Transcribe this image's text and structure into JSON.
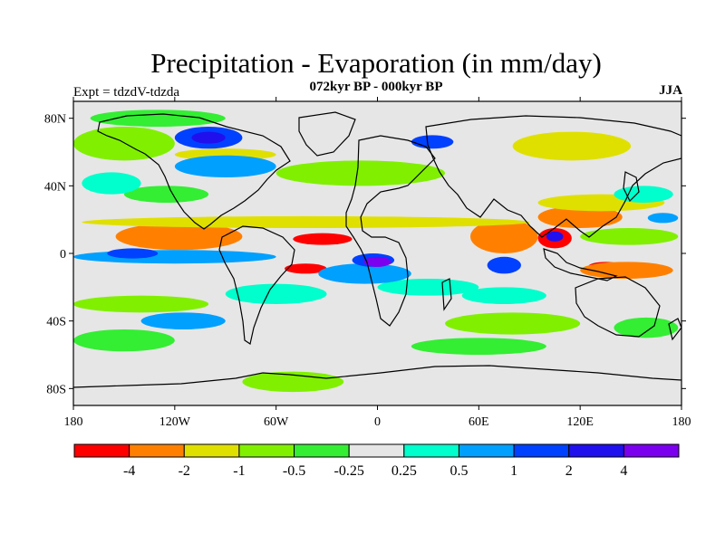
{
  "title": "Precipitation - Evaporation (in mm/day)",
  "subtitle": "072kyr BP - 000kyr BP",
  "left_label": "Expt = tdzdV-tdzda",
  "right_label": "JJA",
  "map": {
    "projection": "cylindrical equidistant",
    "lon_range": [
      -180,
      180
    ],
    "lat_range": [
      -90,
      90
    ],
    "background_color": "#e6e6e6",
    "coastline_color": "#000000",
    "x_tick_labels": [
      "180",
      "120W",
      "60W",
      "0",
      "60E",
      "120E",
      "180"
    ],
    "x_tick_values": [
      -180,
      -120,
      -60,
      0,
      60,
      120,
      180
    ],
    "y_tick_labels": [
      "80N",
      "40N",
      "0",
      "40S",
      "80S"
    ],
    "y_tick_values": [
      80,
      40,
      0,
      -40,
      -80
    ]
  },
  "colorbar": {
    "colors": [
      "#ff0000",
      "#ff8000",
      "#e0e000",
      "#80f000",
      "#33ee33",
      "#e6e6e6",
      "#00ffcc",
      "#00a0ff",
      "#0040ff",
      "#2010ee",
      "#7a00ee"
    ],
    "labels": [
      "-4",
      "-2",
      "-1",
      "-0.5",
      "-0.25",
      "0.25",
      "0.5",
      "1",
      "2",
      "4"
    ],
    "levels": [
      -4,
      -2,
      -1,
      -0.5,
      -0.25,
      0.25,
      0.5,
      1,
      2,
      4
    ]
  },
  "field_regions": [
    {
      "level": 0,
      "lon": [
        -140,
        -90
      ],
      "lat": [
        5,
        14
      ]
    },
    {
      "level": 0,
      "lon": [
        -50,
        -15
      ],
      "lat": [
        5,
        12
      ]
    },
    {
      "level": 0,
      "lon": [
        -55,
        -30
      ],
      "lat": [
        -12,
        -6
      ]
    },
    {
      "level": 0,
      "lon": [
        75,
        90
      ],
      "lat": [
        4,
        14
      ]
    },
    {
      "level": 0,
      "lon": [
        95,
        115
      ],
      "lat": [
        3,
        15
      ]
    },
    {
      "level": 0,
      "lon": [
        125,
        145
      ],
      "lat": [
        -10,
        -5
      ]
    },
    {
      "level": 1,
      "lon": [
        -155,
        -80
      ],
      "lat": [
        2,
        18
      ]
    },
    {
      "level": 1,
      "lon": [
        55,
        95
      ],
      "lat": [
        0,
        20
      ]
    },
    {
      "level": 1,
      "lon": [
        95,
        145
      ],
      "lat": [
        15,
        28
      ]
    },
    {
      "level": 1,
      "lon": [
        120,
        175
      ],
      "lat": [
        -15,
        -5
      ]
    },
    {
      "level": 2,
      "lon": [
        -175,
        90
      ],
      "lat": [
        15,
        22
      ]
    },
    {
      "level": 2,
      "lon": [
        95,
        170
      ],
      "lat": [
        25,
        35
      ]
    },
    {
      "level": 2,
      "lon": [
        -120,
        -60
      ],
      "lat": [
        55,
        62
      ]
    },
    {
      "level": 2,
      "lon": [
        80,
        150
      ],
      "lat": [
        55,
        72
      ]
    },
    {
      "level": 3,
      "lon": [
        -180,
        -120
      ],
      "lat": [
        55,
        75
      ]
    },
    {
      "level": 3,
      "lon": [
        -60,
        40
      ],
      "lat": [
        40,
        55
      ]
    },
    {
      "level": 3,
      "lon": [
        -180,
        -100
      ],
      "lat": [
        -35,
        -25
      ]
    },
    {
      "level": 3,
      "lon": [
        40,
        120
      ],
      "lat": [
        -48,
        -35
      ]
    },
    {
      "level": 3,
      "lon": [
        120,
        178
      ],
      "lat": [
        5,
        15
      ]
    },
    {
      "level": 3,
      "lon": [
        -80,
        -20
      ],
      "lat": [
        -82,
        -70
      ]
    },
    {
      "level": 4,
      "lon": [
        -180,
        -120
      ],
      "lat": [
        -58,
        -45
      ]
    },
    {
      "level": 4,
      "lon": [
        20,
        100
      ],
      "lat": [
        -60,
        -50
      ]
    },
    {
      "level": 4,
      "lon": [
        140,
        178
      ],
      "lat": [
        -50,
        -38
      ]
    },
    {
      "level": 4,
      "lon": [
        -150,
        -100
      ],
      "lat": [
        30,
        40
      ]
    },
    {
      "level": 4,
      "lon": [
        -170,
        -90
      ],
      "lat": [
        75,
        85
      ]
    },
    {
      "level": 6,
      "lon": [
        -175,
        -140
      ],
      "lat": [
        35,
        48
      ]
    },
    {
      "level": 6,
      "lon": [
        -90,
        -30
      ],
      "lat": [
        -30,
        -18
      ]
    },
    {
      "level": 6,
      "lon": [
        0,
        60
      ],
      "lat": [
        -25,
        -15
      ]
    },
    {
      "level": 6,
      "lon": [
        140,
        175
      ],
      "lat": [
        30,
        40
      ]
    },
    {
      "level": 6,
      "lon": [
        50,
        100
      ],
      "lat": [
        -30,
        -20
      ]
    },
    {
      "level": 7,
      "lon": [
        -180,
        -60
      ],
      "lat": [
        -6,
        2
      ]
    },
    {
      "level": 7,
      "lon": [
        -35,
        20
      ],
      "lat": [
        -18,
        -6
      ]
    },
    {
      "level": 7,
      "lon": [
        -120,
        -60
      ],
      "lat": [
        45,
        58
      ]
    },
    {
      "level": 7,
      "lon": [
        160,
        178
      ],
      "lat": [
        18,
        24
      ]
    },
    {
      "level": 7,
      "lon": [
        -140,
        -90
      ],
      "lat": [
        -45,
        -35
      ]
    },
    {
      "level": 8,
      "lon": [
        -160,
        -130
      ],
      "lat": [
        -3,
        3
      ]
    },
    {
      "level": 8,
      "lon": [
        -120,
        -80
      ],
      "lat": [
        62,
        75
      ]
    },
    {
      "level": 8,
      "lon": [
        20,
        45
      ],
      "lat": [
        62,
        70
      ]
    },
    {
      "level": 8,
      "lon": [
        -15,
        10
      ],
      "lat": [
        -8,
        0
      ]
    },
    {
      "level": 8,
      "lon": [
        65,
        85
      ],
      "lat": [
        -12,
        -2
      ]
    },
    {
      "level": 9,
      "lon": [
        -110,
        -90
      ],
      "lat": [
        65,
        72
      ]
    },
    {
      "level": 9,
      "lon": [
        100,
        110
      ],
      "lat": [
        7,
        13
      ]
    },
    {
      "level": 10,
      "lon": [
        -8,
        8
      ],
      "lat": [
        -8,
        -2
      ]
    }
  ]
}
